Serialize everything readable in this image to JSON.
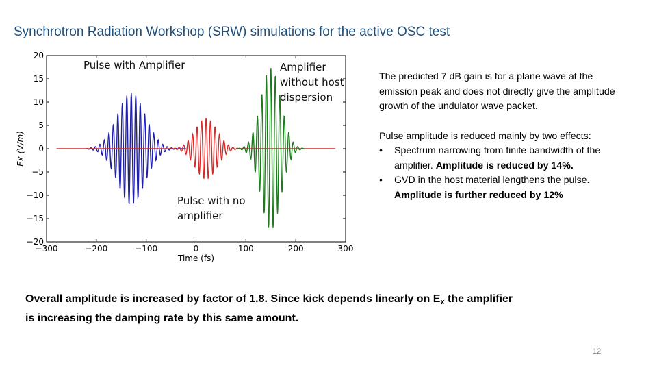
{
  "slide": {
    "title": "Synchrotron Radiation Workshop (SRW) simulations for the active OSC test",
    "page_number": "12",
    "description": {
      "paragraph1": "The predicted 7 dB gain is for a plane wave at the emission peak and does not directly give the amplitude growth of the undulator wave packet.",
      "paragraph2_intro": "Pulse amplitude is reduced mainly by two effects:",
      "bullets": [
        {
          "bullet": "•",
          "normal": "Spectrum narrowing from finite bandwidth of the amplifier. ",
          "bold": "Amplitude is reduced by 14%."
        },
        {
          "bullet": "•",
          "normal": "GVD in the host material lengthens the pulse. ",
          "bold": "Amplitude is further reduced by 12%"
        }
      ]
    },
    "summary": {
      "part1": "Overall amplitude is increased by factor of 1.8. Since kick depends linearly on E",
      "subscript": "x",
      "part2": " the amplifier is increasing the damping rate by this same amount."
    }
  },
  "chart_data": {
    "type": "line",
    "xlabel": "Time (fs)",
    "ylabel": "Ex (V/m)",
    "xlim": [
      -300,
      300
    ],
    "ylim": [
      -20,
      20
    ],
    "xticks": [
      -300,
      -200,
      -100,
      0,
      100,
      200,
      300
    ],
    "xtick_labels": [
      "−300",
      "−200",
      "−100",
      "0",
      "100",
      "200",
      "300"
    ],
    "yticks": [
      20,
      15,
      10,
      5,
      0,
      -5,
      -10,
      -15,
      -20
    ],
    "ytick_labels": [
      "20",
      "15",
      "10",
      "5",
      "0",
      "−5",
      "−10",
      "−15",
      "−20"
    ],
    "grid": false,
    "annotations": [
      {
        "text": "Pulse with Amplifier",
        "lines": [
          "Pulse with Amplifier"
        ]
      },
      {
        "text": "Amplifier without host dispersion",
        "lines": [
          "Amplifier",
          "without host",
          "dispersion"
        ]
      },
      {
        "text": "Pulse with no amplifier",
        "lines": [
          "Pulse with no",
          "amplifier"
        ]
      }
    ],
    "series": [
      {
        "color": "#1f1fa8",
        "center": -130,
        "amplitude": 12,
        "sigma": 28,
        "period": 9,
        "range": [
          -220,
          -20
        ]
      },
      {
        "color": "#d42a2a",
        "center": 20,
        "amplitude": 6.6,
        "sigma": 22,
        "period": 9,
        "range": [
          -280,
          280
        ]
      },
      {
        "color": "#1f7a1f",
        "center": 150,
        "amplitude": 17.5,
        "sigma": 20,
        "period": 9,
        "range": [
          80,
          220
        ]
      }
    ],
    "colors": {
      "pulse_with_amplifier": "#1f1fa8",
      "pulse_no_amplifier": "#d42a2a",
      "no_host_dispersion": "#1f7a1f"
    }
  }
}
